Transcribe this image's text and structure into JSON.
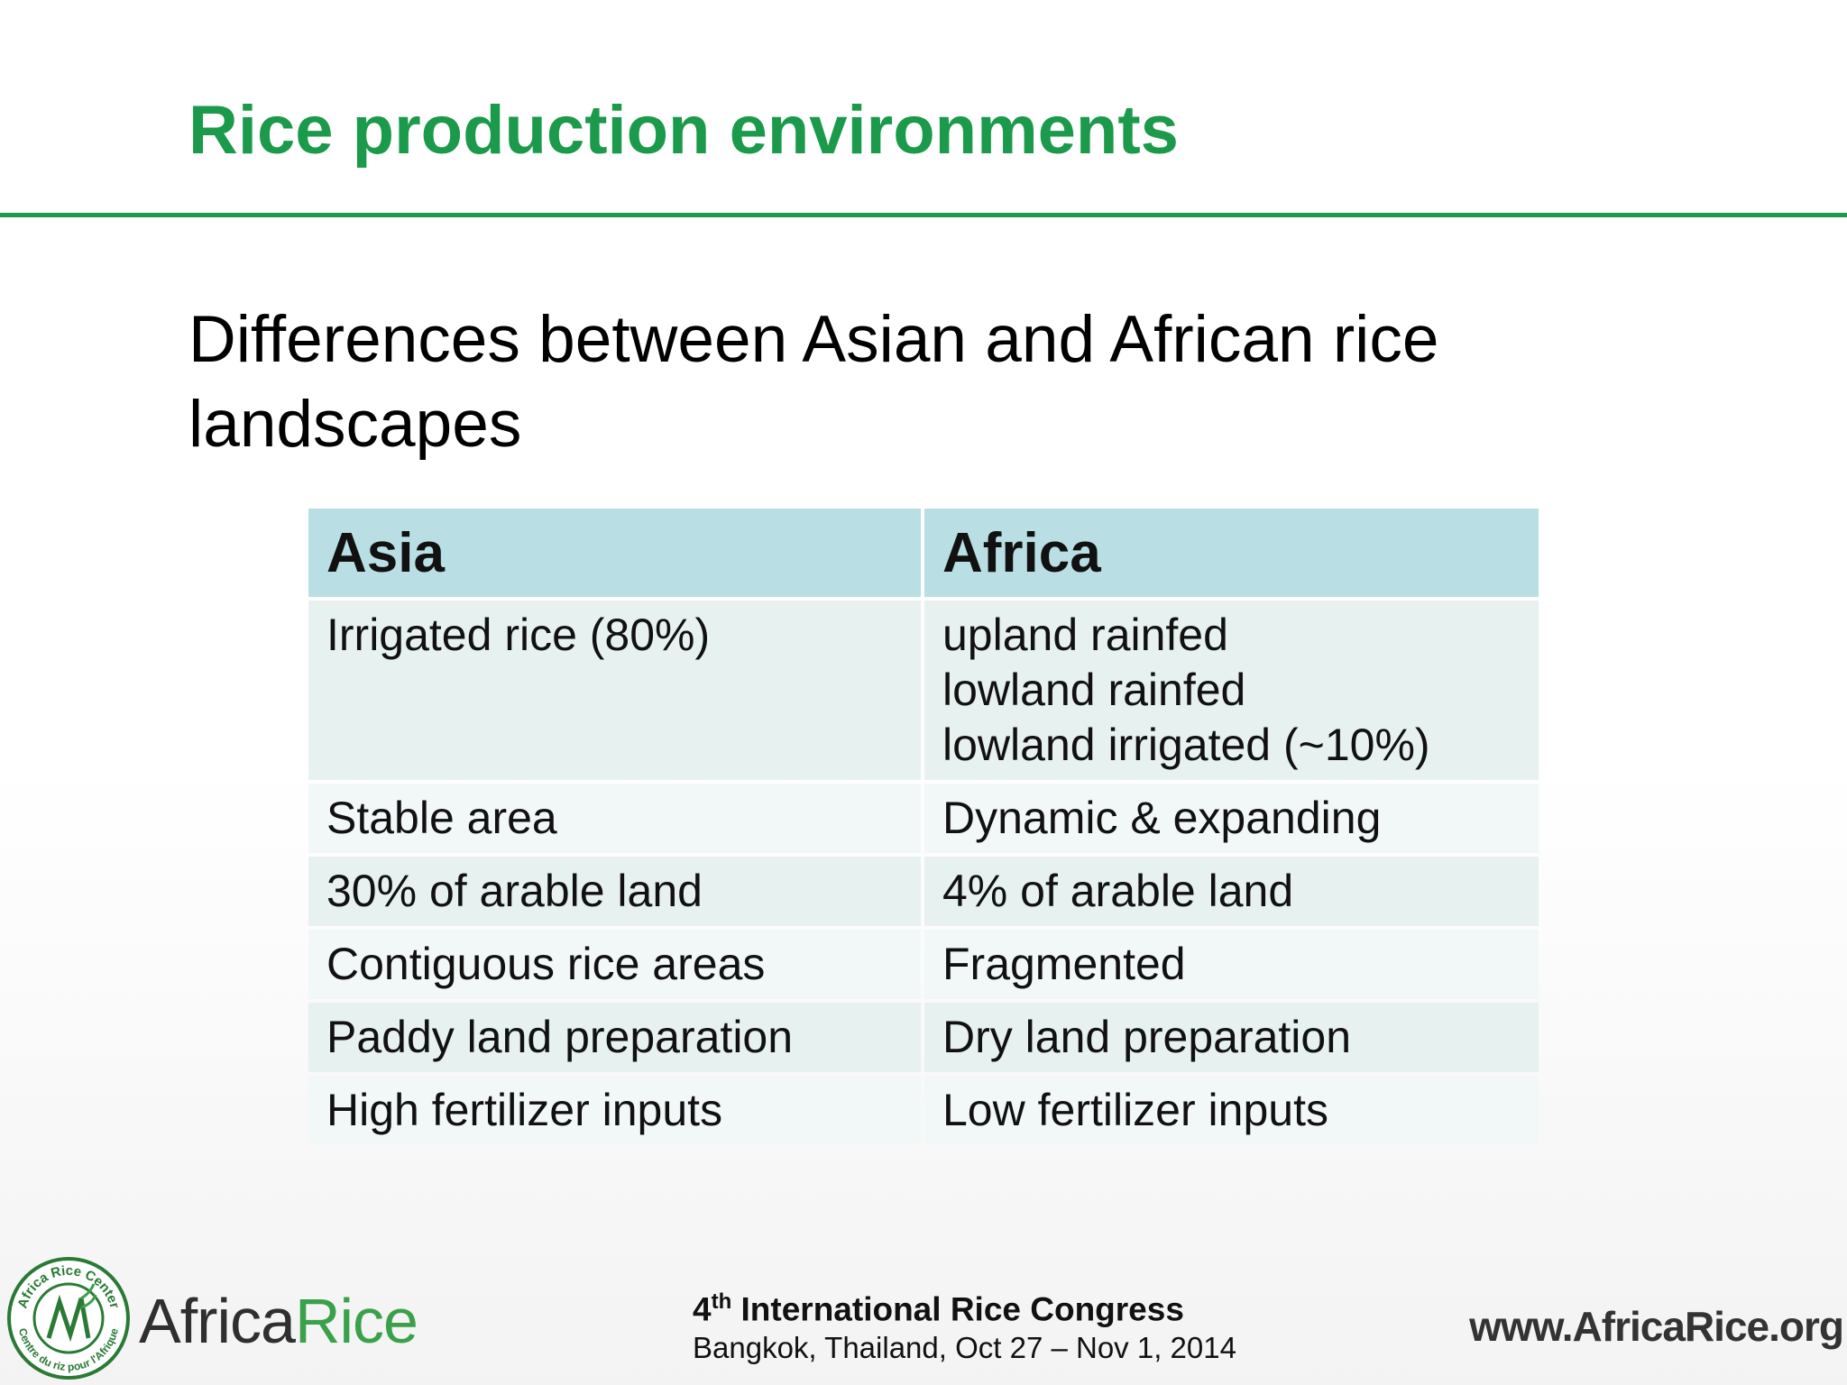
{
  "header": {
    "title": "Rice production environments"
  },
  "subtitle": [
    "Differences between Asian and African rice",
    "landscapes"
  ],
  "table": {
    "header": [
      "Asia",
      "Africa"
    ],
    "rows": [
      [
        [
          "Irrigated rice (80%)"
        ],
        [
          "upland rainfed",
          "lowland rainfed",
          "lowland irrigated (~10%)"
        ]
      ],
      [
        [
          "Stable area"
        ],
        [
          "Dynamic & expanding"
        ]
      ],
      [
        [
          "30% of arable land"
        ],
        [
          "4% of arable land"
        ]
      ],
      [
        [
          "Contiguous rice areas"
        ],
        [
          "Fragmented"
        ]
      ],
      [
        [
          "Paddy land preparation"
        ],
        [
          "Dry land preparation"
        ]
      ],
      [
        [
          "High fertilizer inputs"
        ],
        [
          "Low fertilizer inputs"
        ]
      ]
    ]
  },
  "footer": {
    "logo": {
      "seal_top": "Africa Rice Center",
      "seal_bottom": "Centre du riz pour l'Afrique",
      "name_part1": "Africa",
      "name_part2": "Rice"
    },
    "congress": {
      "ordinal": "4",
      "superscript": "th",
      "name": "International Rice Congress",
      "details": "Bangkok, Thailand, Oct 27 – Nov 1, 2014"
    },
    "website": "www.AfricaRice.org"
  }
}
